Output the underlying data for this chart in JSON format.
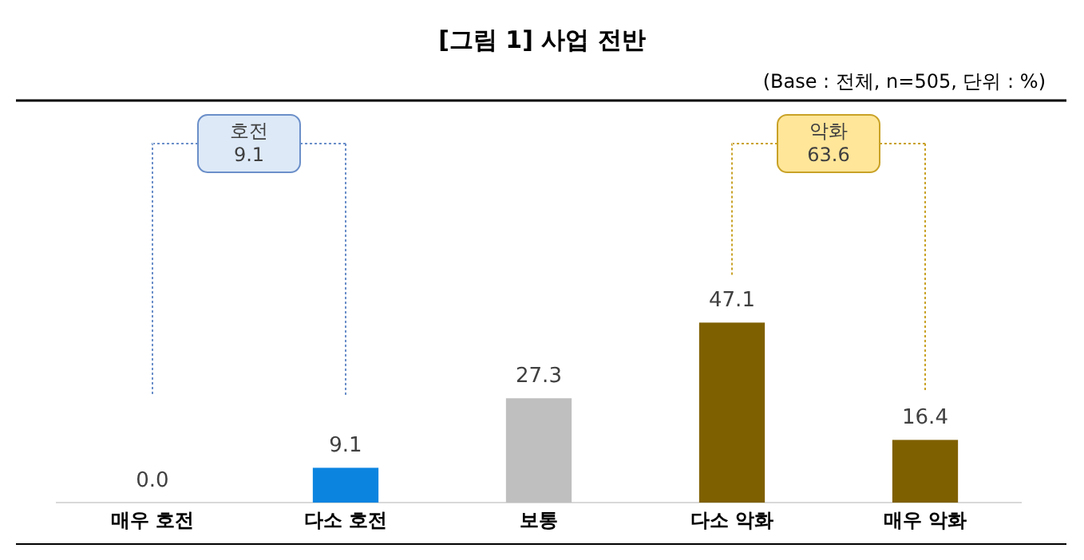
{
  "chart_data": {
    "type": "bar",
    "title": "[그림 1] 사업 전반",
    "subtitle": "(Base : 전체, n=505, 단위 : %)",
    "categories": [
      "매우 호전",
      "다소 호전",
      "보통",
      "다소 악화",
      "매우 악화"
    ],
    "values": [
      0.0,
      9.1,
      27.3,
      47.1,
      16.4
    ],
    "colors": [
      "#0b84e0",
      "#0b84e0",
      "#bfbfbf",
      "#7f6000",
      "#7f6000"
    ],
    "value_labels": [
      "0.0",
      "9.1",
      "27.3",
      "47.1",
      "16.4"
    ],
    "annotations": [
      "호전 9.1",
      "악화 63.6"
    ]
  }
}
